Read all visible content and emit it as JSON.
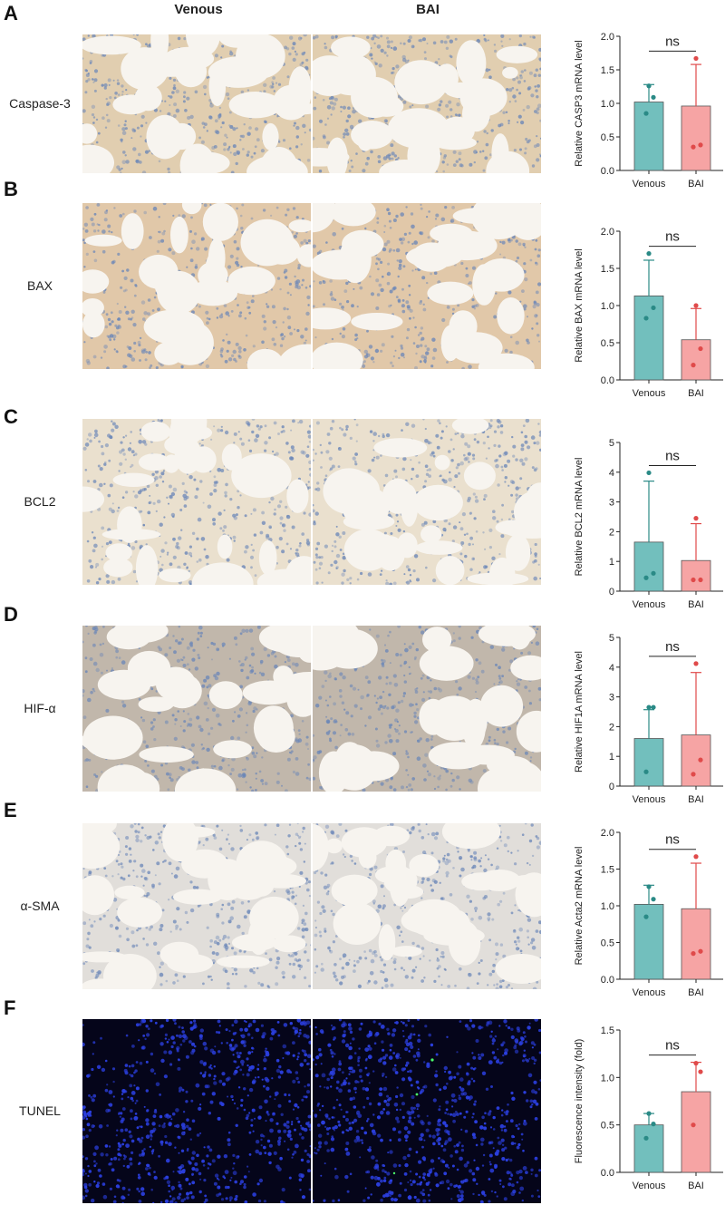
{
  "column_headers": {
    "venous": "Venous",
    "bai": "BAI"
  },
  "colors": {
    "venous_bar": "#72bfbd",
    "venous_dot": "#2a8a86",
    "bai_bar": "#f6a4a4",
    "bai_dot": "#e04a4a",
    "ihc_bg": "#f7f4ef",
    "ihc_tissue": "#cfc1a8",
    "ihc_nuclei": "#6a86b8",
    "tunel_bg": "#05051a",
    "tunel_nuclei": "#2b3fe0"
  },
  "panels": [
    {
      "letter": "A",
      "label": "Caspase-3",
      "stain": "ihc",
      "tone": "#c9a56f"
    },
    {
      "letter": "B",
      "label": "BAX",
      "stain": "ihc",
      "tone": "#c89a62"
    },
    {
      "letter": "C",
      "label": "BCL2",
      "stain": "ihc",
      "tone": "#d8c7a6"
    },
    {
      "letter": "D",
      "label": "HIF-α",
      "stain": "ihc",
      "tone": "#8e7c66"
    },
    {
      "letter": "E",
      "label": "α-SMA",
      "stain": "ihc",
      "tone": "#c8c3bb"
    },
    {
      "letter": "F",
      "label": "TUNEL",
      "stain": "fluorescence",
      "tone": "#2b3fe0"
    }
  ],
  "chart_data": [
    {
      "type": "bar",
      "categories": [
        "Venous",
        "BAI"
      ],
      "ylabel": "Relative CASP3 mRNA level",
      "ylim": [
        0,
        2.0
      ],
      "yticks": [
        "0.0",
        "0.5",
        "1.0",
        "1.5",
        "2.0"
      ],
      "annotation": "ns",
      "values": [
        1.02,
        0.96
      ],
      "errors": [
        0.26,
        0.62
      ],
      "points": [
        [
          1.26,
          1.09,
          0.85
        ],
        [
          1.67,
          0.38,
          0.35
        ]
      ]
    },
    {
      "type": "bar",
      "categories": [
        "Venous",
        "BAI"
      ],
      "ylabel": "Relative BAX mRNA level",
      "ylim": [
        0,
        2.0
      ],
      "yticks": [
        "0.0",
        "0.5",
        "1.0",
        "1.5",
        "2.0"
      ],
      "annotation": "ns",
      "values": [
        1.13,
        0.54
      ],
      "errors": [
        0.48,
        0.42
      ],
      "points": [
        [
          1.7,
          0.97,
          0.83
        ],
        [
          1.0,
          0.42,
          0.2
        ]
      ]
    },
    {
      "type": "bar",
      "categories": [
        "Venous",
        "BAI"
      ],
      "ylabel": "Relative BCL2 mRNA level",
      "ylim": [
        0,
        5
      ],
      "yticks": [
        "0",
        "1",
        "2",
        "3",
        "4",
        "5"
      ],
      "annotation": "ns",
      "values": [
        1.65,
        1.03
      ],
      "errors": [
        2.05,
        1.24
      ],
      "points": [
        [
          3.98,
          0.6,
          0.45
        ],
        [
          2.45,
          0.38,
          0.38
        ]
      ]
    },
    {
      "type": "bar",
      "categories": [
        "Venous",
        "BAI"
      ],
      "ylabel": "Relative HIF1A mRNA level",
      "ylim": [
        0,
        5
      ],
      "yticks": [
        "0",
        "1",
        "2",
        "3",
        "4",
        "5"
      ],
      "annotation": "ns",
      "values": [
        1.6,
        1.72
      ],
      "errors": [
        0.97,
        2.1
      ],
      "points": [
        [
          2.65,
          2.65,
          0.48
        ],
        [
          4.12,
          0.88,
          0.4
        ]
      ]
    },
    {
      "type": "bar",
      "categories": [
        "Venous",
        "BAI"
      ],
      "ylabel": "Relative Acta2 mRNA level",
      "ylim": [
        0,
        2.0
      ],
      "yticks": [
        "0.0",
        "0.5",
        "1.0",
        "1.5",
        "2.0"
      ],
      "annotation": "ns",
      "values": [
        1.02,
        0.96
      ],
      "errors": [
        0.26,
        0.62
      ],
      "points": [
        [
          1.26,
          1.09,
          0.85
        ],
        [
          1.67,
          0.38,
          0.35
        ]
      ]
    },
    {
      "type": "bar",
      "categories": [
        "Venous",
        "BAI"
      ],
      "ylabel": "Fluorescence intensity (fold)",
      "ylim": [
        0,
        1.5
      ],
      "yticks": [
        "0.0",
        "0.5",
        "1.0",
        "1.5"
      ],
      "annotation": "ns",
      "values": [
        0.5,
        0.85
      ],
      "errors": [
        0.12,
        0.31
      ],
      "points": [
        [
          0.62,
          0.51,
          0.36
        ],
        [
          1.15,
          1.06,
          0.5
        ]
      ]
    }
  ]
}
